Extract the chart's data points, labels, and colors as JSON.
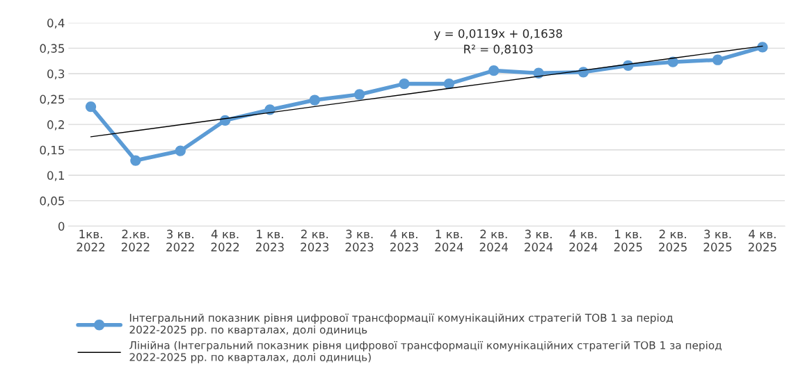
{
  "chart_data": {
    "type": "line",
    "categories": [
      "1кв.\n2022",
      "2.кв.\n2022",
      "3 кв.\n2022",
      "4 кв.\n2022",
      "1 кв.\n2023",
      "2 кв.\n2023",
      "3 кв.\n2023",
      "4 кв.\n2023",
      "1 кв.\n2024",
      "2 кв.\n2024",
      "3 кв.\n2024",
      "4 кв.\n2024",
      "1 кв.\n2025",
      "2 кв.\n2025",
      "3 кв.\n2025",
      "4 кв.\n2025"
    ],
    "series": [
      {
        "name": "Інтегральний показник рівня цифрової трансформації комунікаційних стратегій ТОВ 1 за період 2022-2025 рр. по кварталах, долі одиниць",
        "color": "#5b9bd5",
        "marker": "circle",
        "values": [
          0.235,
          0.129,
          0.148,
          0.208,
          0.229,
          0.248,
          0.259,
          0.28,
          0.28,
          0.306,
          0.301,
          0.303,
          0.316,
          0.323,
          0.327,
          0.352
        ]
      },
      {
        "name": "Лінійна (Інтегральний показник рівня цифрової трансформації комунікаційних стратегій ТОВ 1 за період 2022-2025 рр. по кварталах, долі одиниць)",
        "color": "#000000",
        "marker": "none",
        "values": [
          0.1757,
          0.1876,
          0.1995,
          0.2114,
          0.2233,
          0.2352,
          0.2471,
          0.259,
          0.2709,
          0.2828,
          0.2947,
          0.3066,
          0.3185,
          0.3304,
          0.3423,
          0.3542
        ]
      }
    ],
    "ylim": [
      0,
      0.4
    ],
    "yticks": [
      0,
      {
        "value": 0.05,
        "label": "0,05"
      },
      {
        "value": 0.1,
        "label": "0,1"
      },
      {
        "value": 0.15,
        "label": "0,15"
      },
      {
        "value": 0.2,
        "label": "0,2"
      },
      {
        "value": 0.25,
        "label": "0,25"
      },
      {
        "value": 0.3,
        "label": "0,3"
      },
      {
        "value": 0.35,
        "label": "0,35"
      },
      {
        "value": 0.4,
        "label": "0,4"
      }
    ],
    "annotations": [
      "y = 0,0119x + 0,1638\nR² = 0,8103"
    ],
    "grid": "y",
    "legend": "bottom"
  }
}
